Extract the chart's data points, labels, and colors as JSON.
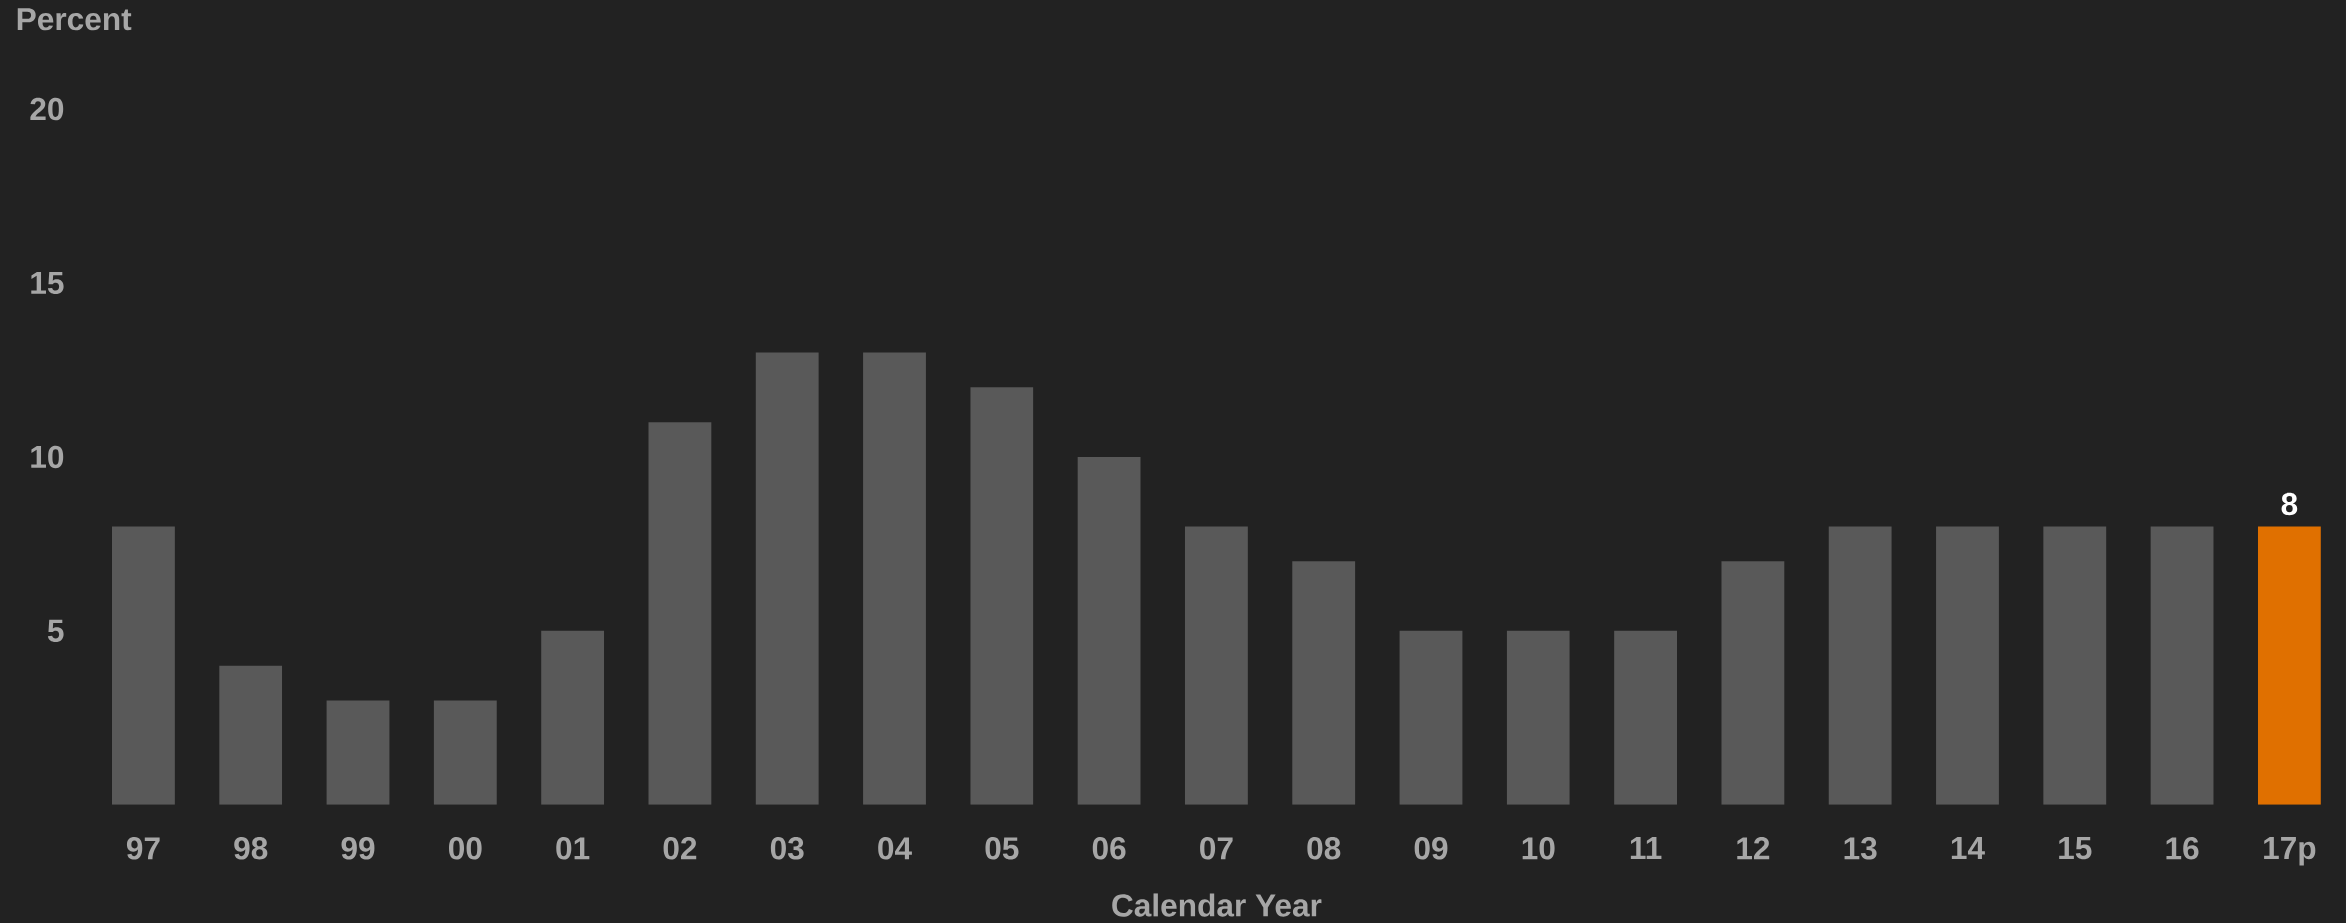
{
  "chart_data": {
    "type": "bar",
    "ylabel": "Percent",
    "xlabel": "Calendar Year",
    "categories": [
      "97",
      "98",
      "99",
      "00",
      "01",
      "02",
      "03",
      "04",
      "05",
      "06",
      "07",
      "08",
      "09",
      "10",
      "11",
      "12",
      "13",
      "14",
      "15",
      "16",
      "17p"
    ],
    "values": [
      8,
      4,
      3,
      3,
      5,
      11,
      13,
      13,
      12,
      10,
      8,
      7,
      5,
      5,
      5,
      7,
      8,
      8,
      8,
      8,
      8
    ],
    "colors": [
      "#595959",
      "#595959",
      "#595959",
      "#595959",
      "#595959",
      "#595959",
      "#595959",
      "#595959",
      "#595959",
      "#595959",
      "#595959",
      "#595959",
      "#595959",
      "#595959",
      "#595959",
      "#595959",
      "#595959",
      "#595959",
      "#595959",
      "#595959",
      "#e07000"
    ],
    "value_labels": [
      null,
      null,
      null,
      null,
      null,
      null,
      null,
      null,
      null,
      null,
      null,
      null,
      null,
      null,
      null,
      null,
      null,
      null,
      null,
      null,
      "8"
    ],
    "ylim": [
      0,
      20
    ],
    "yticks": [
      5,
      10,
      15,
      20
    ],
    "grid": false
  }
}
